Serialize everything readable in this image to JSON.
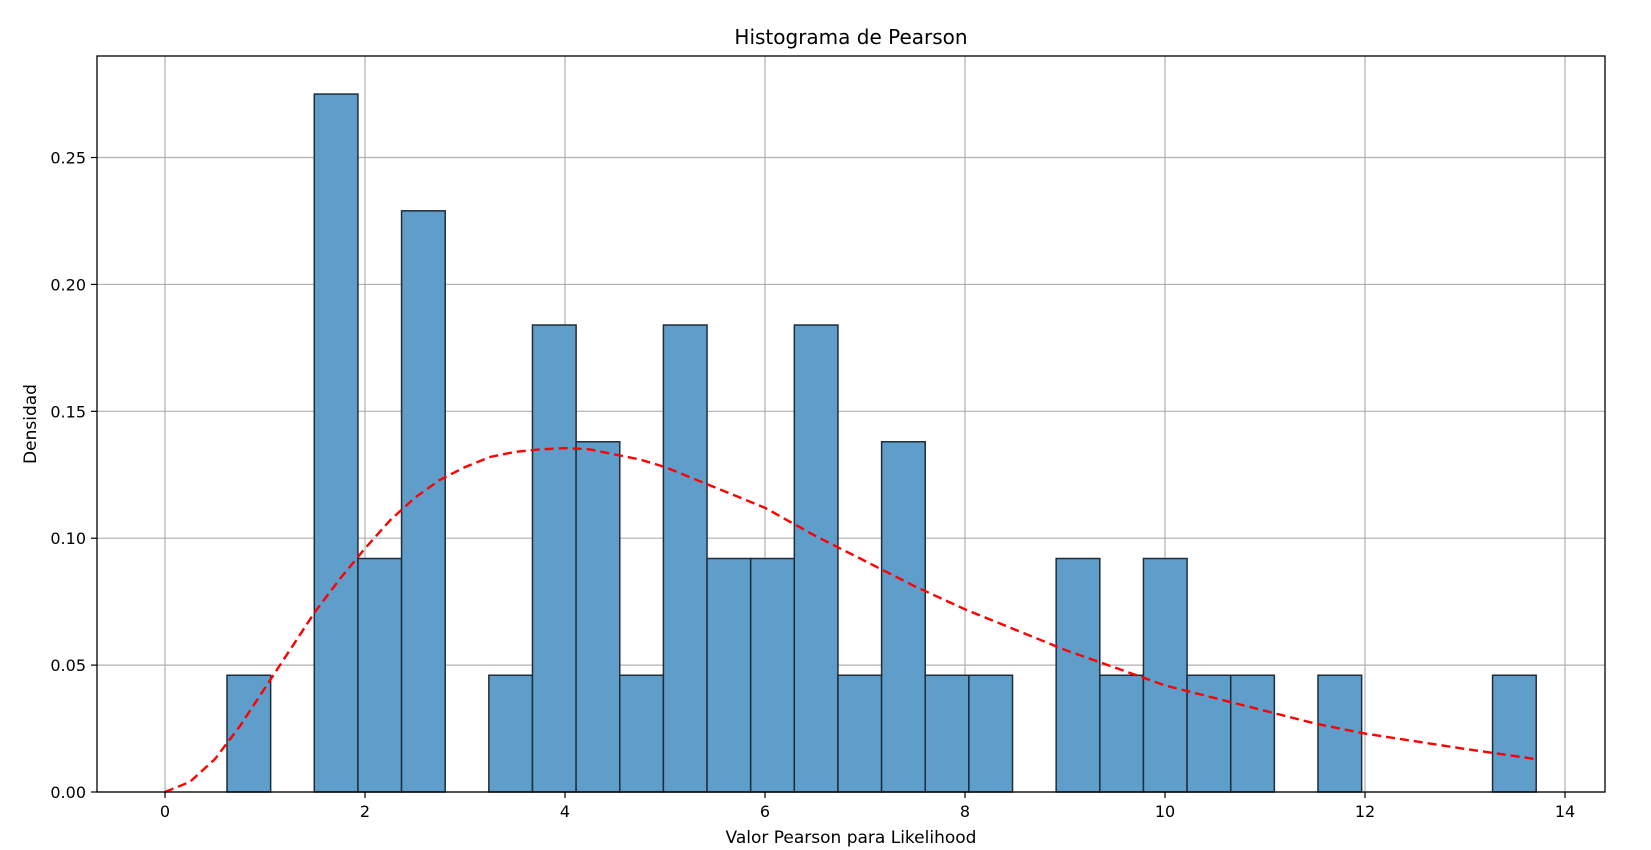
{
  "chart_data": {
    "type": "bar",
    "title": "Histograma de Pearson",
    "xlabel": "Valor Pearson para Likelihood",
    "ylabel": "Densidad",
    "xlim": [
      -0.68,
      14.4
    ],
    "ylim": [
      0,
      0.29
    ],
    "xticks": [
      0,
      2,
      4,
      6,
      8,
      10,
      12,
      14
    ],
    "yticks": [
      0.0,
      0.05,
      0.1,
      0.15,
      0.2,
      0.25
    ],
    "ytick_labels": [
      "0.00",
      "0.05",
      "0.10",
      "0.15",
      "0.20",
      "0.25"
    ],
    "grid": true,
    "bins": {
      "start": 0.62,
      "width": 0.4364,
      "values": [
        0.046,
        0,
        0.275,
        0.092,
        0.229,
        0,
        0.046,
        0.184,
        0.138,
        0.046,
        0.184,
        0.092,
        0.092,
        0.184,
        0.046,
        0.138,
        0.046,
        0.046,
        0,
        0.092,
        0.046,
        0.092,
        0.046,
        0.046,
        0,
        0.046,
        0,
        0,
        0,
        0.046
      ]
    },
    "bar_color": "#5f9ecb",
    "bar_edge_color": "#1f2d3a",
    "series": [
      {
        "type": "line",
        "style": "dashed",
        "color": "#ff0000",
        "x": [
          0,
          0.25,
          0.5,
          0.75,
          1,
          1.25,
          1.5,
          1.75,
          2,
          2.25,
          2.5,
          2.75,
          3,
          3.25,
          3.5,
          3.75,
          4,
          4.25,
          4.5,
          4.75,
          5,
          5.5,
          6,
          6.5,
          7,
          7.5,
          8,
          8.5,
          9,
          9.5,
          10,
          10.5,
          11,
          11.5,
          12,
          12.5,
          13,
          13.7
        ],
        "y": [
          0,
          0.004,
          0.013,
          0.026,
          0.041,
          0.056,
          0.071,
          0.084,
          0.096,
          0.107,
          0.116,
          0.123,
          0.128,
          0.132,
          0.134,
          0.135,
          0.1355,
          0.135,
          0.133,
          0.131,
          0.128,
          0.12,
          0.112,
          0.101,
          0.091,
          0.081,
          0.072,
          0.064,
          0.056,
          0.049,
          0.042,
          0.037,
          0.032,
          0.027,
          0.023,
          0.02,
          0.017,
          0.013
        ]
      }
    ]
  }
}
